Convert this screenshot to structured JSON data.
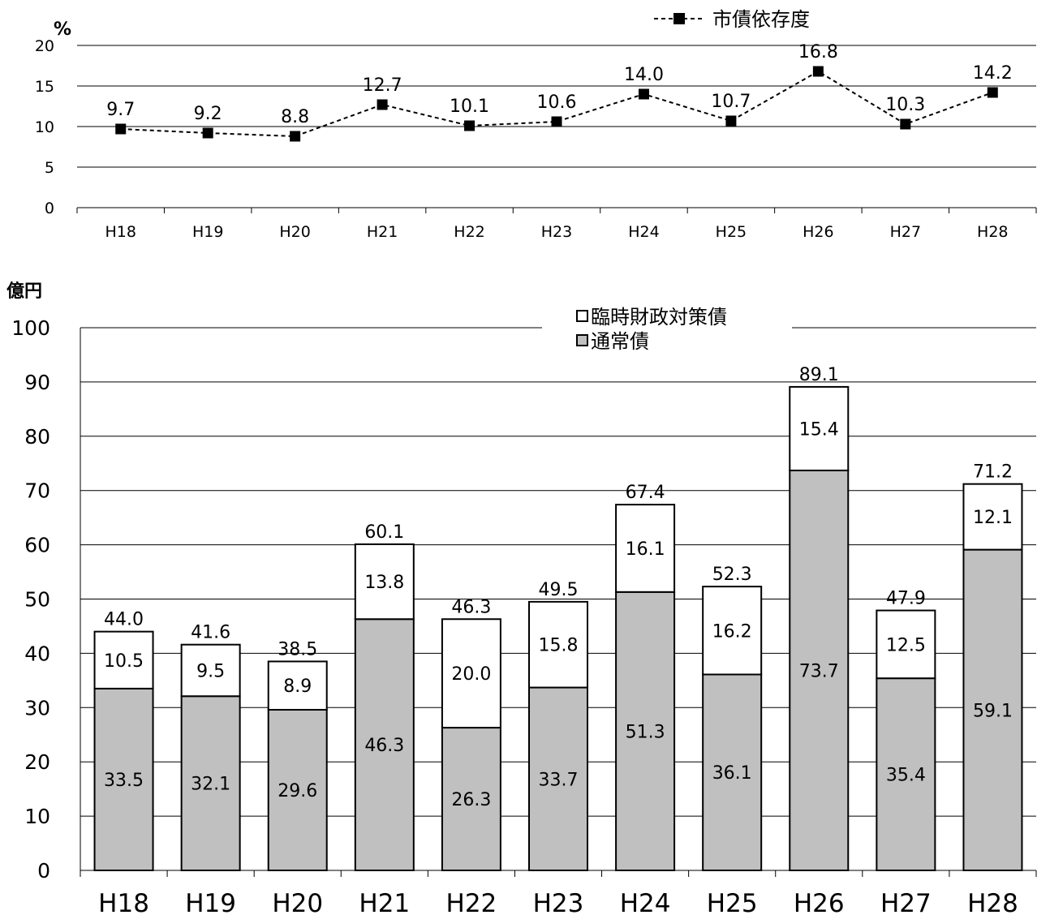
{
  "chart_data": [
    {
      "type": "line",
      "unit_label": "%",
      "categories": [
        "H18",
        "H19",
        "H20",
        "H21",
        "H22",
        "H23",
        "H24",
        "H25",
        "H26",
        "H27",
        "H28"
      ],
      "series": [
        {
          "name": "市債依存度",
          "values": [
            9.7,
            9.2,
            8.8,
            12.7,
            10.1,
            10.6,
            14.0,
            10.7,
            16.8,
            10.3,
            14.2
          ]
        }
      ],
      "value_labels": [
        "9.7",
        "9.2",
        "8.8",
        "12.7",
        "10.1",
        "10.6",
        "14.0",
        "10.7",
        "16.8",
        "10.3",
        "14.2"
      ],
      "y_ticks": [
        "0",
        "5",
        "10",
        "15",
        "20"
      ],
      "ylim": [
        0,
        20
      ],
      "grid": true,
      "legend_position": "top-right",
      "line_style": "dashed",
      "marker": "square",
      "colors": {
        "line": "#000000",
        "marker": "#000000"
      }
    },
    {
      "type": "bar",
      "stacked": true,
      "unit_label": "億円",
      "categories": [
        "H18",
        "H19",
        "H20",
        "H21",
        "H22",
        "H23",
        "H24",
        "H25",
        "H26",
        "H27",
        "H28"
      ],
      "series": [
        {
          "name": "通常債",
          "values": [
            33.5,
            32.1,
            29.6,
            46.3,
            26.3,
            33.7,
            51.3,
            36.1,
            73.7,
            35.4,
            59.1
          ],
          "labels": [
            "33.5",
            "32.1",
            "29.6",
            "46.3",
            "26.3",
            "33.7",
            "51.3",
            "36.1",
            "73.7",
            "35.4",
            "59.1"
          ],
          "color": "#c0c0c0"
        },
        {
          "name": "臨時財政対策債",
          "values": [
            10.5,
            9.5,
            8.9,
            13.8,
            20.0,
            15.8,
            16.1,
            16.2,
            15.4,
            12.5,
            12.1
          ],
          "labels": [
            "10.5",
            "9.5",
            "8.9",
            "13.8",
            "20.0",
            "15.8",
            "16.1",
            "16.2",
            "15.4",
            "12.5",
            "12.1"
          ],
          "color": "#ffffff"
        }
      ],
      "totals": [
        44.0,
        41.6,
        38.5,
        60.1,
        46.3,
        49.5,
        67.4,
        52.3,
        89.1,
        47.9,
        71.2
      ],
      "total_labels": [
        "44.0",
        "41.6",
        "38.5",
        "60.1",
        "46.3",
        "49.5",
        "67.4",
        "52.3",
        "89.1",
        "47.9",
        "71.2"
      ],
      "y_ticks": [
        "0",
        "10",
        "20",
        "30",
        "40",
        "50",
        "60",
        "70",
        "80",
        "90",
        "100"
      ],
      "ylim": [
        0,
        100
      ],
      "grid": true,
      "legend_position": "top-right"
    }
  ]
}
